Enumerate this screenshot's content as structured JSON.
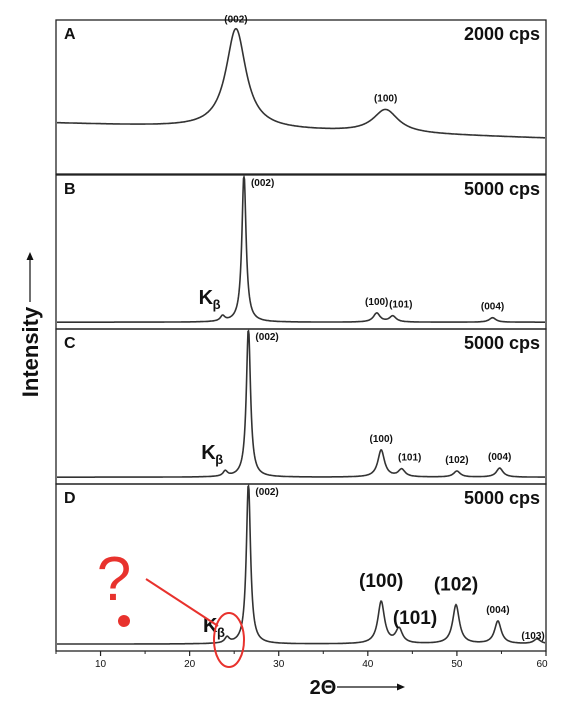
{
  "chart_data": {
    "type": "line",
    "xlabel": "2Θ",
    "ylabel": "Intensity",
    "xlim": [
      5,
      60
    ],
    "xticks": [
      10,
      20,
      30,
      40,
      50,
      60
    ],
    "panels": [
      {
        "id": "A",
        "scale_label": "2000 cps",
        "style": "broad",
        "peaks": [
          {
            "label": "(002)",
            "x": 25.2,
            "height": 0.86
          },
          {
            "label": "(100)",
            "x": 42.0,
            "height": 0.2
          }
        ]
      },
      {
        "id": "B",
        "scale_label": "5000 cps",
        "style": "sharp",
        "kbeta": {
          "label": "K",
          "sub": "β",
          "x": 23.7
        },
        "peaks": [
          {
            "label": "(002)",
            "x": 26.1,
            "height": 1.0
          },
          {
            "label": "(100)",
            "x": 41.0,
            "height": 0.06
          },
          {
            "label": "(101)",
            "x": 42.8,
            "height": 0.04
          },
          {
            "label": "(004)",
            "x": 54.0,
            "height": 0.03
          }
        ]
      },
      {
        "id": "C",
        "scale_label": "5000 cps",
        "style": "sharp",
        "kbeta": {
          "label": "K",
          "sub": "β",
          "x": 24.0
        },
        "peaks": [
          {
            "label": "(002)",
            "x": 26.6,
            "height": 1.0
          },
          {
            "label": "(100)",
            "x": 41.5,
            "height": 0.18
          },
          {
            "label": "(101)",
            "x": 43.8,
            "height": 0.05
          },
          {
            "label": "(102)",
            "x": 50.0,
            "height": 0.04
          },
          {
            "label": "(004)",
            "x": 54.8,
            "height": 0.06
          }
        ]
      },
      {
        "id": "D",
        "scale_label": "5000 cps",
        "style": "sharp",
        "kbeta": {
          "label": "K",
          "sub": "β",
          "x": 24.2
        },
        "peaks": [
          {
            "label": "(002)",
            "x": 26.6,
            "height": 1.0
          },
          {
            "label": "(100)",
            "x": 41.5,
            "height": 0.26
          },
          {
            "label": "(101)",
            "x": 43.5,
            "height": 0.09
          },
          {
            "label": "(102)",
            "x": 49.9,
            "height": 0.24
          },
          {
            "label": "(004)",
            "x": 54.6,
            "height": 0.14
          },
          {
            "label": "(103)",
            "x": 59.0,
            "height": 0.03
          }
        ]
      }
    ],
    "annotation": {
      "text": "?",
      "color": "#e8322d"
    }
  }
}
